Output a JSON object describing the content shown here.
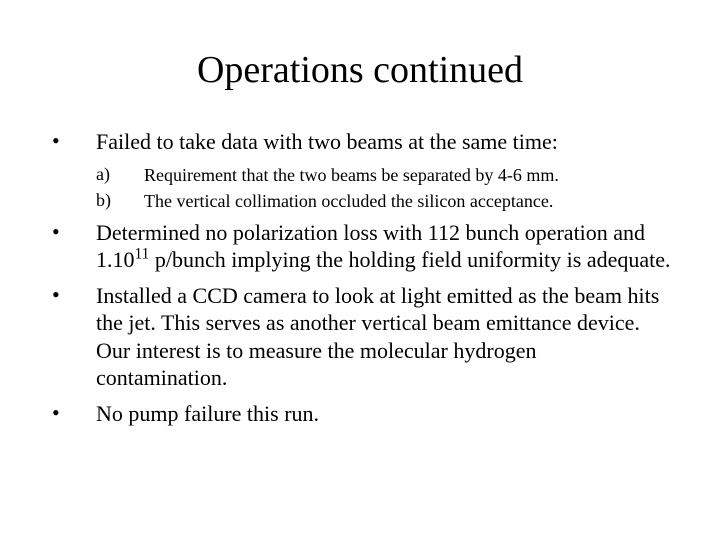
{
  "title": "Operations continued",
  "bullets": {
    "b1": "Failed to take data with two beams at the same time:",
    "sub_a": "Requirement that the two beams be separated by 4-6 mm.",
    "sub_b": "The vertical collimation occluded the silicon acceptance.",
    "b2_pre": "Determined no polarization loss with 112 bunch operation and 1.10",
    "b2_exp": "11",
    "b2_post": " p/bunch implying the holding field uniformity is adequate.",
    "b3": "Installed a CCD camera to look at light emitted as the beam hits the jet. This serves as another vertical beam emittance device. Our interest is to measure the molecular hydrogen contamination.",
    "b4": "No pump failure this run."
  },
  "markers": {
    "dot": "•",
    "a": "a)",
    "b": "b)"
  }
}
